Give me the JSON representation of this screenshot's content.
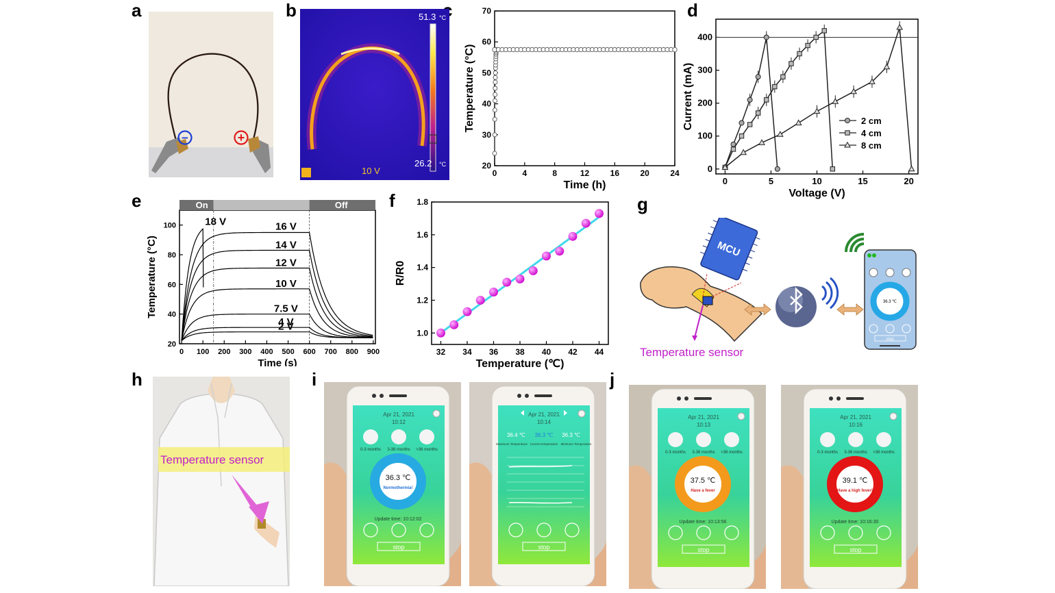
{
  "letters": {
    "a": "a",
    "b": "b",
    "c": "c",
    "d": "d",
    "e": "e",
    "f": "f",
    "g": "g",
    "h": "h",
    "i": "i",
    "j": "j"
  },
  "panel_a": {
    "minus": "−",
    "plus": "+"
  },
  "panel_b": {
    "max_temp": "51.3",
    "min_temp": "26.2",
    "unit": "°C",
    "voltage": "10 V"
  },
  "panel_g": {
    "mcu": "MCU",
    "sensor_label": "Temperature sensor",
    "phone_temp": "36.3 ℃",
    "phone_stop": "stop"
  },
  "panel_h": {
    "sensor_label": "Temperature sensor"
  },
  "phones": [
    {
      "date": "Apr 21, 2021",
      "time": "10:12",
      "temp": "36.3 ℃",
      "status": "Normothermia!",
      "update": "Update time: 10:12:02",
      "stop": "stop",
      "ring": "#27a9e1",
      "status_color": "#1e6fd1"
    },
    {
      "date": "Apr 21, 2021",
      "time": "10:14",
      "temp": "",
      "status": "",
      "update": "",
      "stop": "stop",
      "ring": "",
      "status_color": ""
    },
    {
      "date": "Apr 21, 2021",
      "time": "10:13",
      "temp": "37.5 ℃",
      "status": "Have a fever",
      "update": "Update time: 10:13:56",
      "stop": "stop",
      "ring": "#f39a1c",
      "status_color": "#d02020"
    },
    {
      "date": "Apr 21, 2021",
      "time": "10:16",
      "temp": "39.1 ℃",
      "status": "Have a high fever!",
      "update": "Update time: 10:16:30",
      "stop": "stop",
      "ring": "#e31515",
      "status_color": "#d02020"
    }
  ],
  "phone_icons": {
    "a": "0-3 months",
    "b": "3-36 months",
    "c": ">36 months"
  },
  "phone2": {
    "left_val": "36.4 ℃",
    "mid_val": "36.3 ℃",
    "right_val": "36.3 ℃",
    "left_lbl": "Maximum Temperature",
    "mid_lbl": "Current temperature",
    "right_lbl": "Minimum Temperature"
  },
  "chart_data": [
    {
      "id": "c",
      "type": "line",
      "xlabel": "Time (h)",
      "ylabel": "Temperature (°C)",
      "xlim": [
        0,
        24
      ],
      "ylim": [
        20,
        70
      ],
      "xticks": [
        "0",
        "4",
        "8",
        "12",
        "16",
        "20",
        "24"
      ],
      "yticks": [
        "20",
        "30",
        "40",
        "50",
        "60",
        "70"
      ],
      "x": [
        0,
        0.5,
        1,
        1.5,
        2,
        2.5,
        3,
        3.5,
        4,
        4.5,
        5,
        5.5,
        6,
        6.5,
        7,
        7.5,
        8,
        8.5,
        9,
        9.5,
        10,
        10.5,
        11,
        11.5,
        12,
        12.5,
        13,
        13.5,
        14,
        14.5,
        15,
        15.5,
        16,
        16.5,
        17,
        17.5,
        18,
        18.5,
        19,
        19.5,
        20,
        20.5,
        21,
        21.5,
        22,
        22.5,
        23,
        23.5,
        24
      ],
      "y": 57.5,
      "rise": [
        24,
        30,
        35,
        38,
        41,
        43,
        45,
        47,
        48.5,
        50,
        51.5,
        52.5,
        53.5,
        54.5,
        55.3,
        56,
        56.5,
        57,
        57.5
      ]
    },
    {
      "id": "d",
      "type": "line",
      "xlabel": "Voltage (V)",
      "ylabel": "Current (mA)",
      "xlim": [
        -1,
        21
      ],
      "ylim": [
        -15,
        455
      ],
      "xticks": [
        "0",
        "5",
        "10",
        "15",
        "20"
      ],
      "yticks": [
        "0",
        "100",
        "200",
        "300",
        "400"
      ],
      "hline": 400,
      "series": [
        {
          "name": "2 cm",
          "marker": "circle",
          "x": [
            0,
            0.9,
            1.8,
            2.7,
            3.6,
            4.5,
            5.7
          ],
          "y": [
            5,
            75,
            140,
            210,
            280,
            400,
            0
          ]
        },
        {
          "name": "4 cm",
          "marker": "square",
          "x": [
            0,
            0.9,
            1.8,
            2.7,
            3.6,
            4.5,
            5.4,
            6.3,
            7.2,
            8.1,
            9.0,
            9.9,
            10.8,
            11.7
          ],
          "y": [
            5,
            60,
            100,
            135,
            170,
            210,
            250,
            280,
            320,
            350,
            375,
            400,
            420,
            0
          ]
        },
        {
          "name": "8 cm",
          "marker": "triangle",
          "x": [
            0,
            2,
            4,
            6,
            8,
            10,
            12,
            14,
            16,
            17.6,
            19,
            20.3
          ],
          "y": [
            5,
            50,
            80,
            105,
            140,
            175,
            205,
            235,
            265,
            310,
            430,
            0
          ]
        }
      ]
    },
    {
      "id": "e",
      "type": "line",
      "xlabel": "Time (s)",
      "ylabel": "Temperature (°C)",
      "xlim": [
        -10,
        910
      ],
      "ylim": [
        20,
        110
      ],
      "xticks": [
        "0",
        "100",
        "200",
        "300",
        "400",
        "500",
        "600",
        "700",
        "800",
        "900"
      ],
      "yticks": [
        "20",
        "40",
        "60",
        "80",
        "100"
      ],
      "on_label": "On",
      "off_label": "Off",
      "series": [
        {
          "name": "2 V",
          "plateau": 28
        },
        {
          "name": "4 V",
          "plateau": 31
        },
        {
          "name": "7.5 V",
          "plateau": 40
        },
        {
          "name": "10 V",
          "plateau": 57
        },
        {
          "name": "12 V",
          "plateau": 71
        },
        {
          "name": "14 V",
          "plateau": 83
        },
        {
          "name": "16 V",
          "plateau": 95
        },
        {
          "name": "18 V",
          "plateau": 102
        }
      ]
    },
    {
      "id": "f",
      "type": "scatter",
      "xlabel": "Temperature (℃)",
      "ylabel": "R/R0",
      "xlim": [
        31.3,
        44.7
      ],
      "ylim": [
        0.93,
        1.8
      ],
      "xticks": [
        "32",
        "34",
        "36",
        "38",
        "40",
        "42",
        "44"
      ],
      "yticks": [
        "1.0",
        "1.2",
        "1.4",
        "1.6",
        "1.8"
      ],
      "x": [
        32,
        33,
        34,
        35,
        36,
        37,
        38,
        39,
        40,
        41,
        42,
        43,
        44
      ],
      "y": [
        1.0,
        1.05,
        1.13,
        1.2,
        1.25,
        1.31,
        1.33,
        1.38,
        1.47,
        1.5,
        1.59,
        1.67,
        1.73
      ]
    }
  ]
}
